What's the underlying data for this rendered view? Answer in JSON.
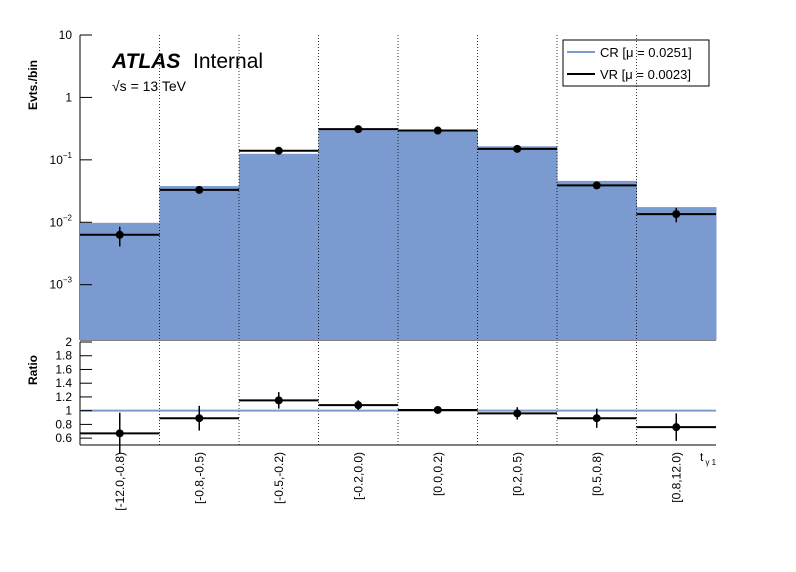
{
  "chart_data": [
    {
      "type": "step",
      "log_scale": true,
      "ylabel": "Evts./bin",
      "experiment": "ATLAS",
      "status": "Internal",
      "energy": "√s = 13 TeV",
      "ylim": [
        0.00013,
        10
      ],
      "yticks": [
        {
          "value": 0.001,
          "label": "10",
          "exponent": "−3"
        },
        {
          "value": 0.01,
          "label": "10",
          "exponent": "−2"
        },
        {
          "value": 0.1,
          "label": "10",
          "exponent": "−1"
        },
        1,
        10
      ],
      "grid_x": true,
      "legend": "top-right",
      "series": [
        {
          "name": "CR [μ = 0.0251]",
          "color": "#7a9ad0",
          "style": "filled",
          "values": [
            0.0098,
            0.038,
            0.125,
            0.3,
            0.29,
            0.165,
            0.046,
            0.0175
          ]
        },
        {
          "name": "VR [μ = 0.0023]",
          "color": "#000000",
          "style": "points",
          "values": [
            0.0063,
            0.033,
            0.14,
            0.31,
            0.295,
            0.15,
            0.039,
            0.0135
          ],
          "errors": [
            0.0022,
            0.004,
            0.012,
            0.02,
            0.02,
            0.012,
            0.004,
            0.0035
          ]
        }
      ]
    },
    {
      "type": "step",
      "ylabel": "Ratio",
      "xlabel": "t",
      "xlabel_sub": "γ 1",
      "categories": [
        "[-12.0,-0.8)",
        "[-0.8,-0.5)",
        "[-0.5,-0.2)",
        "[-0.2,0.0)",
        "[0.0,0.2)",
        "[0.2,0.5)",
        "[0.5,0.8)",
        "[0.8,12.0)"
      ],
      "ylim": [
        0.5,
        2
      ],
      "yticks": [
        0.6,
        0.8,
        1,
        1.2,
        1.4,
        1.6,
        1.8,
        2
      ],
      "grid_x": true,
      "reference": {
        "value": 1,
        "color": "#7a9ad0"
      },
      "series": [
        {
          "color": "#000000",
          "style": "points",
          "values": [
            0.67,
            0.89,
            1.15,
            1.08,
            1.01,
            0.96,
            0.89,
            0.76
          ],
          "errors": [
            0.3,
            0.18,
            0.12,
            0.07,
            0.04,
            0.09,
            0.14,
            0.2
          ]
        }
      ]
    }
  ]
}
